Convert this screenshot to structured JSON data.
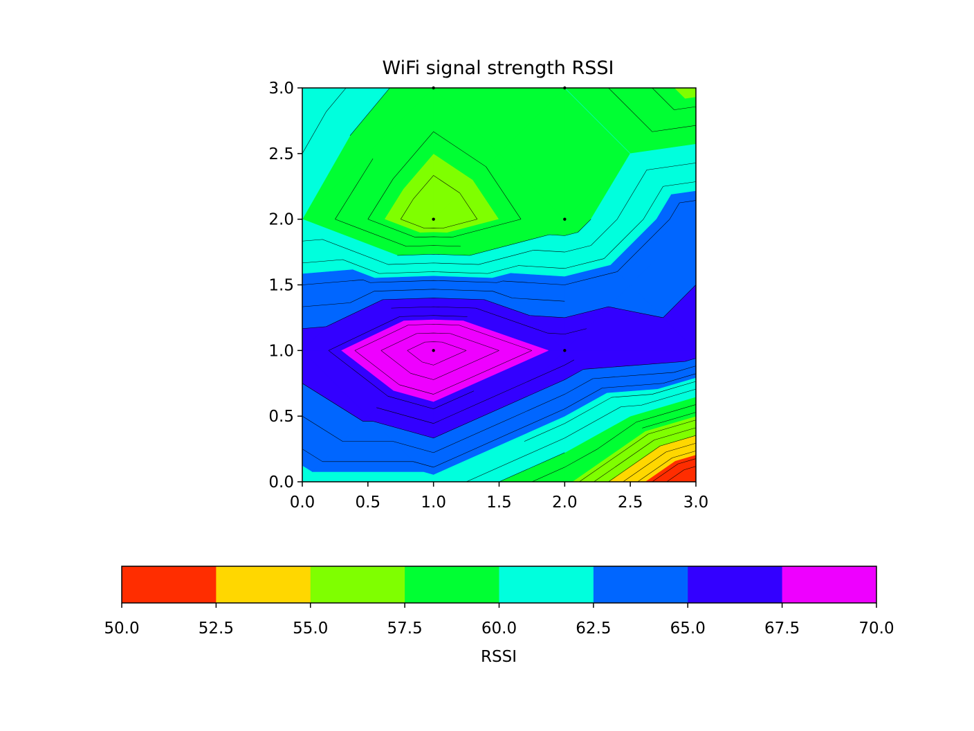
{
  "chart_data": {
    "type": "contour",
    "title": "WiFi signal strength RSSI",
    "xlabel": "",
    "ylabel": "",
    "xlim": [
      0,
      3
    ],
    "ylim": [
      0,
      3
    ],
    "x_ticks": [
      "0.0",
      "0.5",
      "1.0",
      "1.5",
      "2.0",
      "2.5",
      "3.0"
    ],
    "y_ticks": [
      "0.0",
      "0.5",
      "1.0",
      "1.5",
      "2.0",
      "2.5",
      "3.0"
    ],
    "grid": false,
    "x": [
      0,
      1,
      2,
      3
    ],
    "y": [
      0,
      1,
      2,
      3
    ],
    "z": [
      [
        62,
        62,
        58,
        49
      ],
      [
        66,
        71,
        67,
        66
      ],
      [
        60,
        56,
        59,
        64
      ],
      [
        62,
        59,
        60,
        57
      ]
    ],
    "sample_points": [
      {
        "x": 1,
        "y": 1
      },
      {
        "x": 2,
        "y": 1
      },
      {
        "x": 1,
        "y": 2
      },
      {
        "x": 2,
        "y": 2
      },
      {
        "x": 1,
        "y": 3
      },
      {
        "x": 2,
        "y": 3
      }
    ],
    "levels": [
      50,
      52.5,
      55,
      57.5,
      60,
      62.5,
      65,
      67.5,
      70
    ],
    "colors": [
      "#ff2d00",
      "#ffd700",
      "#7fff00",
      "#00ff33",
      "#00ffdd",
      "#0066ff",
      "#3300ff",
      "#ee00ff"
    ],
    "line_levels": [
      51,
      52,
      53,
      54,
      55,
      56,
      57,
      58,
      59,
      60,
      61,
      62,
      63,
      64,
      65,
      66,
      67,
      68,
      69,
      70
    ],
    "colorbar": {
      "label": "RSSI",
      "orientation": "horizontal",
      "range": [
        50,
        70
      ],
      "ticks": [
        "50.0",
        "52.5",
        "55.0",
        "57.5",
        "60.0",
        "62.5",
        "65.0",
        "67.5",
        "70.0"
      ]
    }
  }
}
